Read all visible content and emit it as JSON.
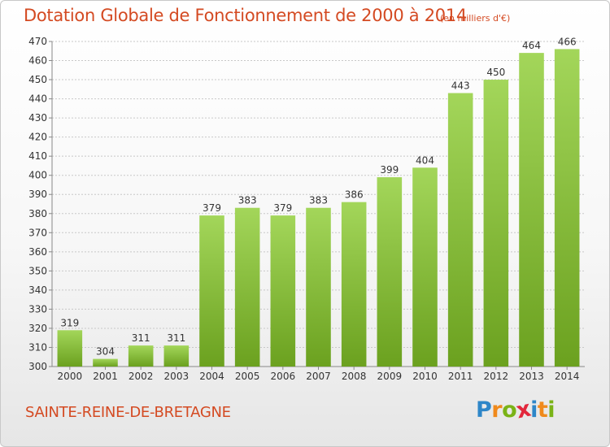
{
  "title": "Dotation Globale de Fonctionnement de 2000 à 2014",
  "subtitle": "(en milliers d'€)",
  "commune": "SAINTE-REINE-DE-BRETAGNE",
  "logo": {
    "letters": [
      "P",
      "r",
      "o",
      "x",
      "i",
      "t",
      "i"
    ],
    "colors": [
      "#2e86c8",
      "#f08a1c",
      "#7ab317",
      "#e2273c",
      "#2e86c8",
      "#f08a1c",
      "#7ab317"
    ]
  },
  "colors": {
    "bar_top": "#a3d65a",
    "bar_bottom": "#6ba11f",
    "grid": "#c8c8c8",
    "text": "#333333",
    "accent": "#d44a22"
  },
  "chart_data": {
    "type": "bar",
    "categories": [
      "2000",
      "2001",
      "2002",
      "2003",
      "2004",
      "2005",
      "2006",
      "2007",
      "2008",
      "2009",
      "2010",
      "2011",
      "2012",
      "2013",
      "2014"
    ],
    "values": [
      319,
      304,
      311,
      311,
      379,
      383,
      379,
      383,
      386,
      399,
      404,
      443,
      450,
      464,
      466
    ],
    "data_labels": [
      "319",
      "304",
      "311",
      "311",
      "379",
      "383",
      "379",
      "383",
      "386",
      "399",
      "404",
      "443",
      "450",
      "464",
      "466"
    ],
    "yticks": [
      "300",
      "310",
      "320",
      "330",
      "340",
      "350",
      "360",
      "370",
      "380",
      "390",
      "400",
      "410",
      "420",
      "430",
      "440",
      "450",
      "460",
      "470"
    ],
    "ylim": [
      300,
      470
    ],
    "grid": true,
    "legend": "none"
  }
}
